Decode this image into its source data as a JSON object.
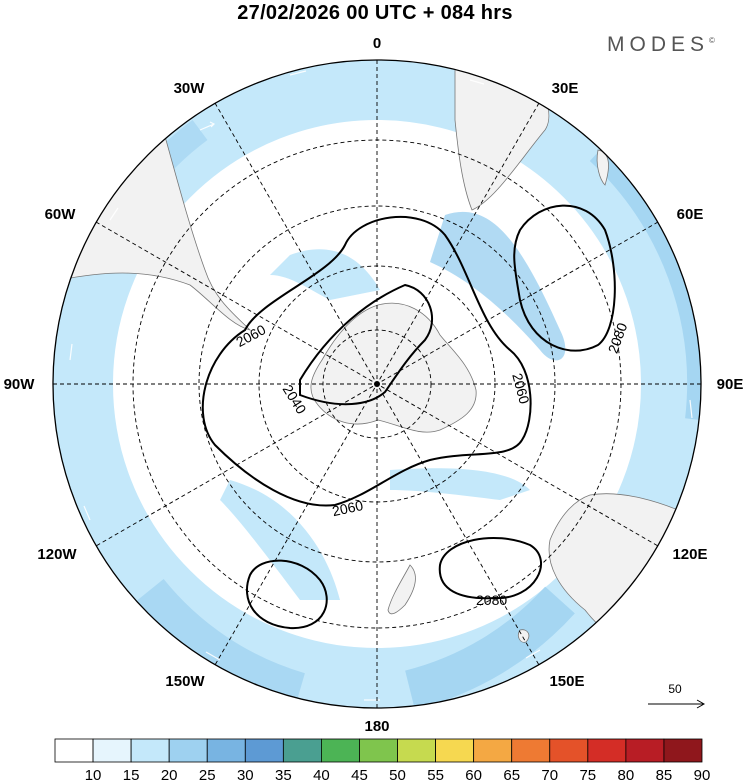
{
  "title": "27/02/2026  00 UTC  + 084 hrs",
  "brand": {
    "name": "MODES",
    "mark": "©"
  },
  "meridian_labels": [
    "0",
    "30E",
    "60E",
    "90E",
    "120E",
    "150E",
    "180",
    "150W",
    "120W",
    "90W",
    "60W",
    "30W"
  ],
  "contour_labels": [
    "2060",
    "2040",
    "2060",
    "2060",
    "2080",
    "2080"
  ],
  "vector_reference": {
    "value": "50"
  },
  "colorbar": {
    "labels": [
      "10",
      "15",
      "20",
      "25",
      "30",
      "35",
      "40",
      "45",
      "50",
      "55",
      "60",
      "65",
      "70",
      "75",
      "80",
      "85",
      "90"
    ],
    "colors": [
      "#ffffff",
      "#e6f5fd",
      "#c4e8fa",
      "#9ed1f0",
      "#78b4e2",
      "#5d9ad4",
      "#4a9f91",
      "#4cb455",
      "#7fc54d",
      "#c6da4f",
      "#f6d850",
      "#f4a843",
      "#ee7a33",
      "#e45229",
      "#d42d26",
      "#b81d25",
      "#8f171c"
    ]
  },
  "colors": {
    "land": "#f2f2f2",
    "ocean": "#ffffff",
    "contour": "#000000",
    "grid": "#000000"
  }
}
